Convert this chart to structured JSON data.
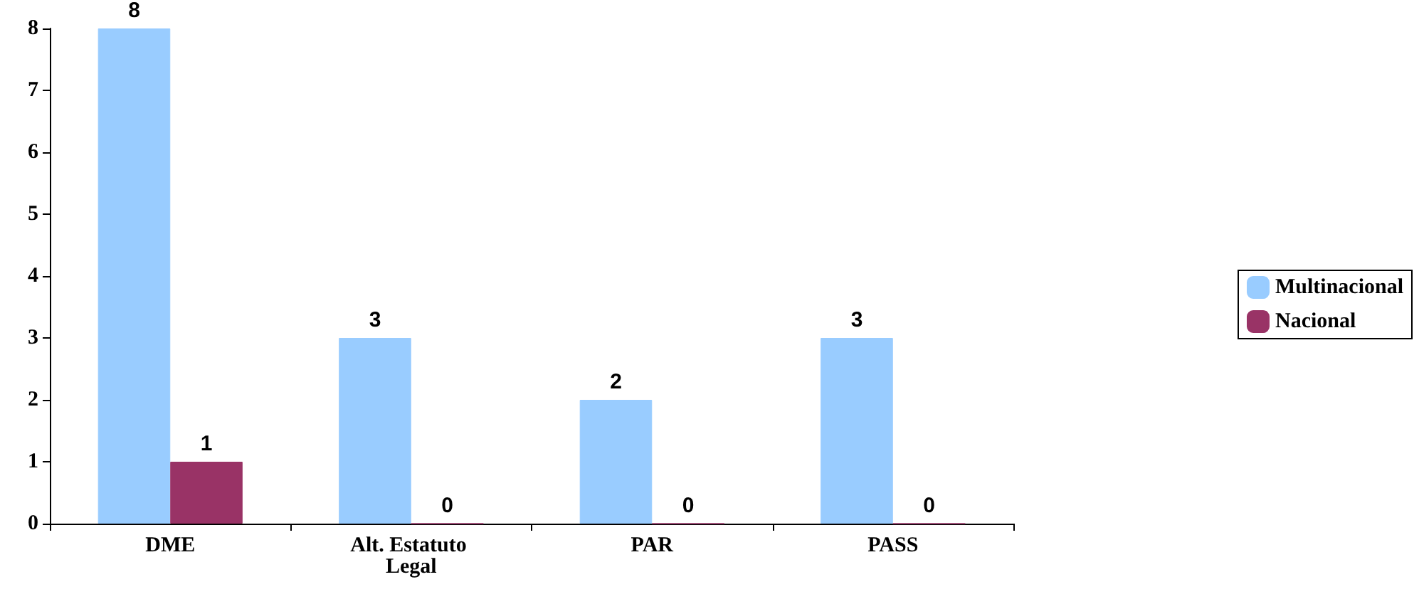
{
  "chart_data": {
    "type": "bar",
    "categories": [
      "DME",
      "Alt. Estatuto Legal",
      "PAR",
      "PASS"
    ],
    "series": [
      {
        "name": "Multinacional",
        "color": "#99ccff",
        "values": [
          8,
          3,
          2,
          3
        ]
      },
      {
        "name": "Nacional",
        "color": "#993366",
        "values": [
          1,
          0,
          0,
          0
        ]
      }
    ],
    "ylim": [
      0,
      8
    ],
    "yticks": [
      0,
      1,
      2,
      3,
      4,
      5,
      6,
      7,
      8
    ],
    "grid": false,
    "legend": "right",
    "data_labels": true
  }
}
